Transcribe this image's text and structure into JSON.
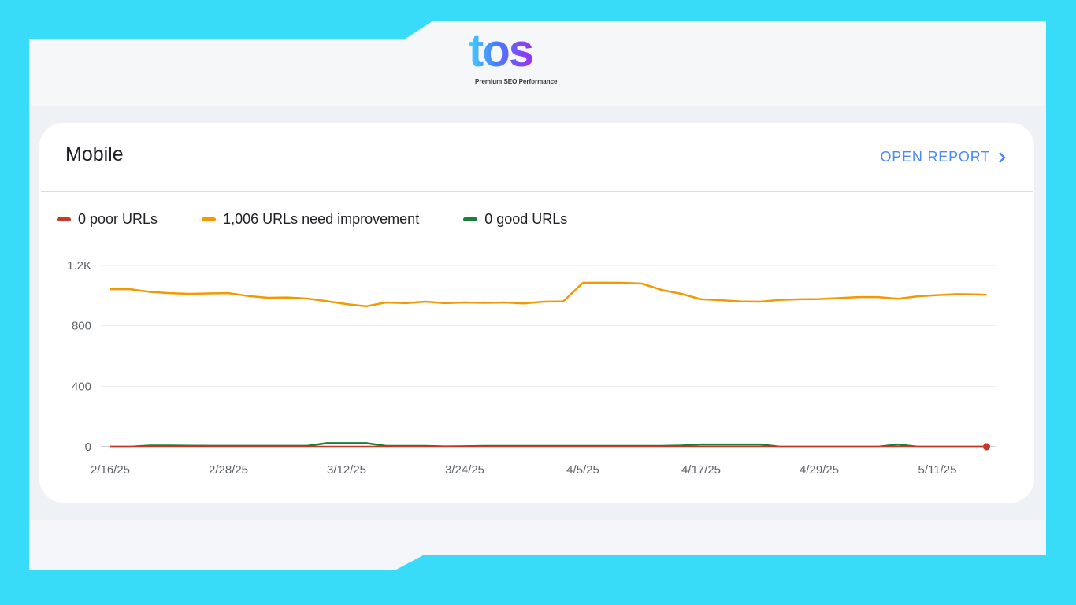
{
  "logo": {
    "text": "tos",
    "tagline": "Premium SEO Performance"
  },
  "card": {
    "title": "Mobile",
    "open_report": "OPEN REPORT",
    "open_icon": "chevron-right-icon"
  },
  "legend": [
    {
      "label": "0 poor URLs",
      "color": "#c5392b"
    },
    {
      "label": "1,006 URLs need improvement",
      "color": "#f29900"
    },
    {
      "label": "0 good URLs",
      "color": "#188038"
    }
  ],
  "chart_data": {
    "type": "line",
    "y_ticks": [
      "0",
      "400",
      "800",
      "1.2K"
    ],
    "y_tick_values": [
      0,
      400,
      800,
      1200
    ],
    "ylim": [
      0,
      1200
    ],
    "x_ticks": [
      "2/16/25",
      "2/28/25",
      "3/12/25",
      "3/24/25",
      "4/5/25",
      "4/17/25",
      "4/29/25",
      "5/11/25"
    ],
    "x": [
      "2/16/25",
      "2/18/25",
      "2/20/25",
      "2/22/25",
      "2/24/25",
      "2/26/25",
      "2/28/25",
      "3/2/25",
      "3/4/25",
      "3/6/25",
      "3/8/25",
      "3/10/25",
      "3/12/25",
      "3/14/25",
      "3/16/25",
      "3/18/25",
      "3/20/25",
      "3/22/25",
      "3/24/25",
      "3/26/25",
      "3/28/25",
      "3/30/25",
      "4/1/25",
      "4/3/25",
      "4/5/25",
      "4/7/25",
      "4/9/25",
      "4/11/25",
      "4/13/25",
      "4/15/25",
      "4/17/25",
      "4/19/25",
      "4/21/25",
      "4/23/25",
      "4/25/25",
      "4/27/25",
      "4/29/25",
      "5/1/25",
      "5/3/25",
      "5/5/25",
      "5/7/25",
      "5/9/25",
      "5/11/25",
      "5/13/25",
      "5/15/25",
      "5/16/25"
    ],
    "grid": true,
    "series": [
      {
        "name": "need improvement",
        "color": "#f29900",
        "values": [
          1043,
          1043,
          1025,
          1017,
          1012,
          1015,
          1017,
          998,
          986,
          988,
          981,
          963,
          944,
          929,
          955,
          950,
          960,
          950,
          955,
          952,
          955,
          948,
          960,
          962,
          1085,
          1086,
          1085,
          1080,
          1038,
          1012,
          976,
          970,
          962,
          960,
          972,
          976,
          978,
          984,
          991,
          991,
          980,
          996,
          1004,
          1010,
          1008,
          1006
        ]
      },
      {
        "name": "good",
        "color": "#188038",
        "values": [
          0,
          0,
          8,
          8,
          7,
          6,
          6,
          6,
          6,
          6,
          6,
          24,
          24,
          24,
          5,
          5,
          5,
          2,
          3,
          5,
          5,
          5,
          5,
          5,
          5,
          5,
          5,
          5,
          5,
          8,
          15,
          15,
          15,
          15,
          0,
          0,
          0,
          0,
          0,
          0,
          15,
          0,
          0,
          0,
          0,
          0
        ]
      },
      {
        "name": "poor",
        "color": "#c5392b",
        "values": [
          0,
          0,
          0,
          0,
          0,
          0,
          0,
          0,
          0,
          0,
          0,
          0,
          0,
          0,
          0,
          0,
          0,
          0,
          0,
          0,
          0,
          0,
          0,
          0,
          0,
          0,
          0,
          0,
          0,
          0,
          0,
          0,
          0,
          0,
          0,
          0,
          0,
          0,
          0,
          0,
          0,
          0,
          0,
          0,
          0,
          0
        ]
      }
    ]
  }
}
